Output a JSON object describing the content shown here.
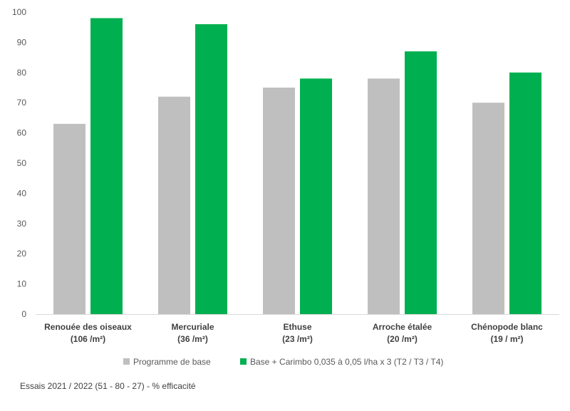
{
  "chart_data": {
    "type": "bar",
    "categories": [
      {
        "name": "Renouée des oiseaux",
        "density": "(106 /m²)"
      },
      {
        "name": "Mercuriale",
        "density": "(36 /m²)"
      },
      {
        "name": "Ethuse",
        "density": "(23 /m²)"
      },
      {
        "name": "Arroche étalée",
        "density": "(20 /m²)"
      },
      {
        "name": "Chénopode blanc",
        "density": "(19 / m²)"
      }
    ],
    "series": [
      {
        "name": "Programme de base",
        "color": "#bfbfbf",
        "values": [
          63,
          72,
          75,
          78,
          70
        ]
      },
      {
        "name": "Base + Carimbo 0,035 à 0,05 l/ha x 3 (T2 / T3 / T4)",
        "color": "#00b050",
        "values": [
          98,
          96,
          78,
          87,
          80
        ]
      }
    ],
    "ylim": [
      0,
      100
    ],
    "yticks": [
      0,
      10,
      20,
      30,
      40,
      50,
      60,
      70,
      80,
      90,
      100
    ],
    "grid": false,
    "legend": "bottom"
  },
  "footnote": "Essais 2021 / 2022 (51 - 80 - 27) - % efficacité"
}
